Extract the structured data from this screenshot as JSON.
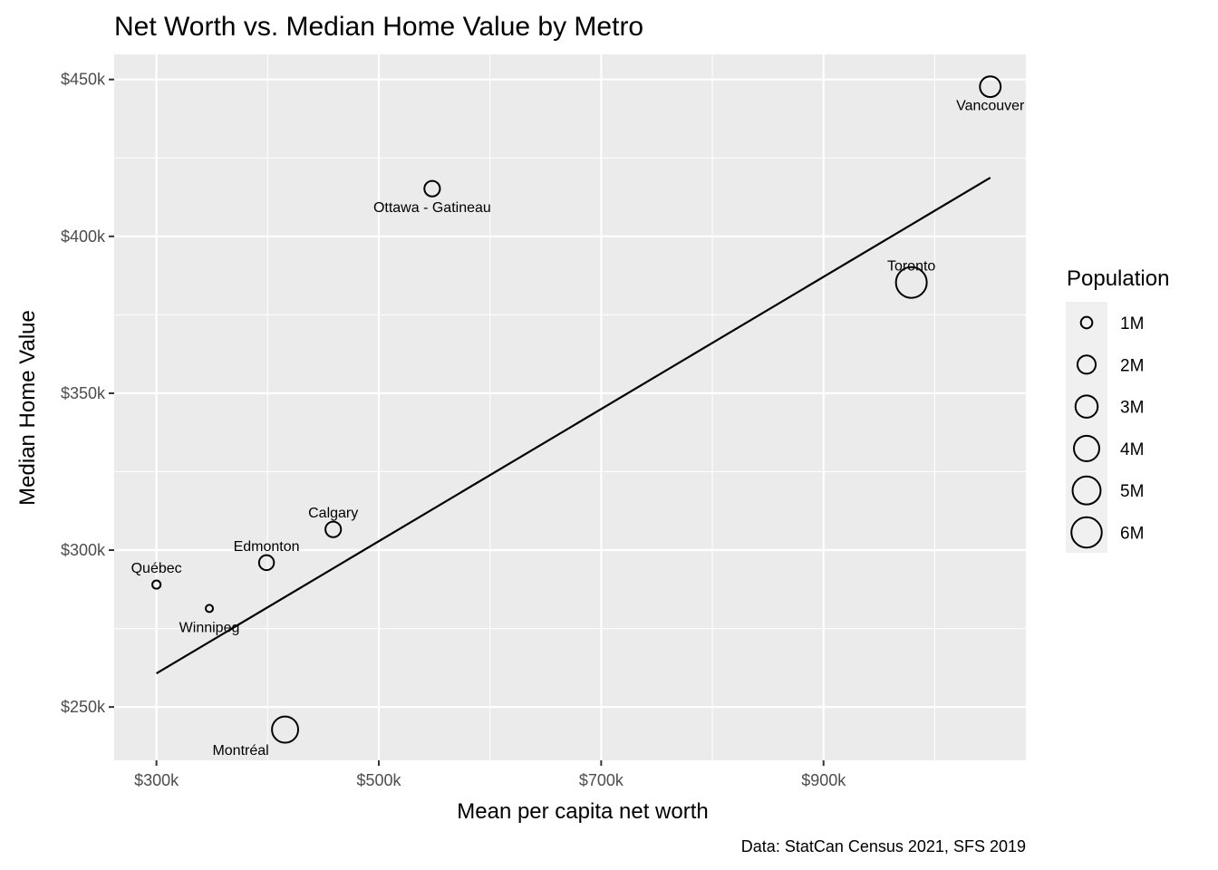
{
  "chart_data": {
    "type": "scatter",
    "title": "Net Worth vs. Median Home Value by Metro",
    "xlabel": "Mean per capita net worth",
    "ylabel": "Median Home Value",
    "caption": "Data: StatCan Census 2021, SFS 2019",
    "xlim": [
      262,
      1082
    ],
    "ylim": [
      233,
      458
    ],
    "x_ticks": [
      300,
      500,
      700,
      900
    ],
    "x_tick_labels": [
      "$300k",
      "$500k",
      "$700k",
      "$900k"
    ],
    "x_minor": [
      400,
      600,
      800,
      1000
    ],
    "y_ticks": [
      250,
      300,
      350,
      400,
      450
    ],
    "y_tick_labels": [
      "$250k",
      "$300k",
      "$350k",
      "$400k",
      "$450k"
    ],
    "y_minor": [
      275,
      325,
      375,
      425
    ],
    "units": "thousands CAD",
    "points": [
      {
        "name": "Vancouver",
        "x": 1050,
        "y": 447.7,
        "pop": 2.6,
        "label_pos": "below"
      },
      {
        "name": "Ottawa - Gatineau",
        "x": 548,
        "y": 415.2,
        "pop": 1.5,
        "label_pos": "below"
      },
      {
        "name": "Toronto",
        "x": 979,
        "y": 385.3,
        "pop": 6.2,
        "label_pos": "above"
      },
      {
        "name": "Calgary",
        "x": 459,
        "y": 306.6,
        "pop": 1.5,
        "label_pos": "above"
      },
      {
        "name": "Edmonton",
        "x": 399,
        "y": 296,
        "pop": 1.4,
        "label_pos": "above"
      },
      {
        "name": "Québec",
        "x": 300,
        "y": 289,
        "pop": 0.84,
        "label_pos": "above"
      },
      {
        "name": "Winnipeg",
        "x": 347.6,
        "y": 281.4,
        "pop": 0.83,
        "label_pos": "below"
      },
      {
        "name": "Montréal",
        "x": 415.7,
        "y": 242.8,
        "pop": 4.3,
        "label_pos": "below-left"
      }
    ],
    "trend_line": {
      "x": [
        300,
        1050
      ],
      "y": [
        260.7,
        418.7
      ]
    },
    "legend": {
      "title": "Population",
      "placement": "right",
      "entries": [
        {
          "label": "1M",
          "pop": 1
        },
        {
          "label": "2M",
          "pop": 2
        },
        {
          "label": "3M",
          "pop": 3
        },
        {
          "label": "4M",
          "pop": 4
        },
        {
          "label": "5M",
          "pop": 5
        },
        {
          "label": "6M",
          "pop": 6
        }
      ]
    },
    "grid": true
  }
}
